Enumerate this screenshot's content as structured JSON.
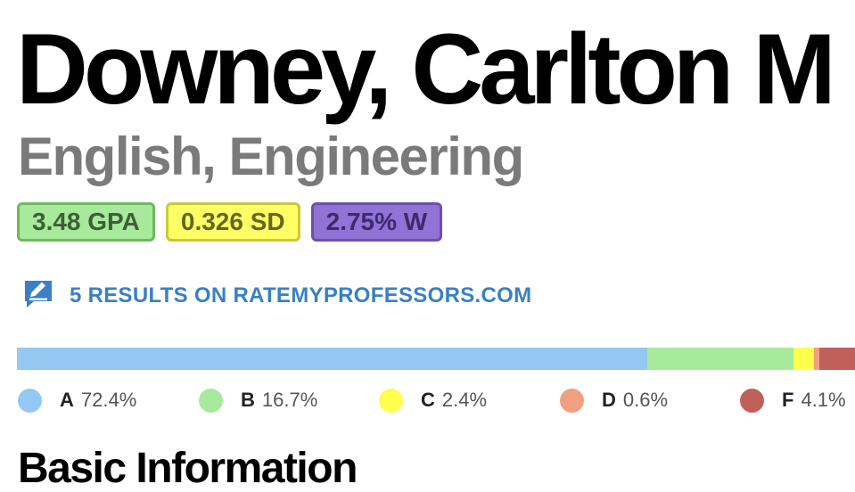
{
  "professor": {
    "name": "Downey, Carlton M",
    "departments": "English, Engineering"
  },
  "badges": {
    "gpa": "3.48 GPA",
    "sd": "0.326 SD",
    "withdraw": "2.75% W",
    "colors": {
      "gpa": "#a7ea9b",
      "sd": "#ffff66",
      "withdraw": "#9173d5"
    }
  },
  "rmp": {
    "icon": "edit-chat-icon",
    "link_text": "5 RESULTS ON RATEMYPROFESSORS.COM",
    "color": "#3b7fc4"
  },
  "grades": [
    {
      "letter": "A",
      "pct_label": "72.4%",
      "value": 72.4,
      "color": "#94c8f3"
    },
    {
      "letter": "B",
      "pct_label": "16.7%",
      "value": 16.7,
      "color": "#a7ea9b"
    },
    {
      "letter": "C",
      "pct_label": "2.4%",
      "value": 2.4,
      "color": "#ffff4d"
    },
    {
      "letter": "D",
      "pct_label": "0.6%",
      "value": 0.6,
      "color": "#f0a07e"
    },
    {
      "letter": "F",
      "pct_label": "4.1%",
      "value": 4.1,
      "color": "#c0605a"
    }
  ],
  "section": {
    "title": "Basic Information"
  }
}
